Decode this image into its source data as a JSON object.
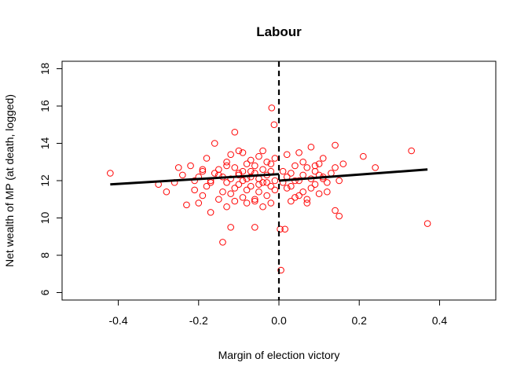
{
  "chart_data": {
    "type": "scatter",
    "title": "Labour",
    "xlabel": "Margin of election victory",
    "ylabel": "Net wealth of MP (at death, logged)",
    "xlim": [
      -0.54,
      0.54
    ],
    "ylim": [
      5.6,
      18.4
    ],
    "xticks": [
      -0.4,
      -0.2,
      0.0,
      0.2,
      0.4
    ],
    "xtick_labels": [
      "-0.4",
      "-0.2",
      "0.0",
      "0.2",
      "0.4"
    ],
    "yticks": [
      6,
      8,
      10,
      12,
      14,
      16,
      18
    ],
    "ytick_labels": [
      "6",
      "8",
      "10",
      "12",
      "14",
      "16",
      "18"
    ],
    "grid": false,
    "legend": "none",
    "point_color": "#ff0000",
    "line_color": "#000000",
    "cutoff_x": 0,
    "fit_left": {
      "x": [
        -0.42,
        0.0
      ],
      "y": [
        11.8,
        12.35
      ]
    },
    "fit_right": {
      "x": [
        0.0,
        0.37
      ],
      "y": [
        12.0,
        12.6
      ]
    },
    "points": [
      [
        -0.42,
        12.4
      ],
      [
        -0.3,
        11.8
      ],
      [
        -0.28,
        11.4
      ],
      [
        -0.26,
        11.9
      ],
      [
        -0.25,
        12.7
      ],
      [
        -0.24,
        12.3
      ],
      [
        -0.23,
        10.7
      ],
      [
        -0.22,
        12.8
      ],
      [
        -0.21,
        11.5
      ],
      [
        -0.2,
        12.2
      ],
      [
        -0.2,
        10.8
      ],
      [
        -0.19,
        11.2
      ],
      [
        -0.19,
        12.5
      ],
      [
        -0.18,
        13.2
      ],
      [
        -0.18,
        11.7
      ],
      [
        -0.17,
        12.0
      ],
      [
        -0.17,
        10.3
      ],
      [
        -0.16,
        12.4
      ],
      [
        -0.16,
        14.0
      ],
      [
        -0.15,
        11.0
      ],
      [
        -0.15,
        12.6
      ],
      [
        -0.14,
        11.4
      ],
      [
        -0.14,
        12.2
      ],
      [
        -0.13,
        13.0
      ],
      [
        -0.13,
        11.9
      ],
      [
        -0.13,
        10.6
      ],
      [
        -0.12,
        12.1
      ],
      [
        -0.12,
        13.4
      ],
      [
        -0.12,
        11.3
      ],
      [
        -0.11,
        12.7
      ],
      [
        -0.11,
        10.9
      ],
      [
        -0.11,
        14.6
      ],
      [
        -0.1,
        12.3
      ],
      [
        -0.1,
        11.8
      ],
      [
        -0.1,
        13.6
      ],
      [
        -0.09,
        12.0
      ],
      [
        -0.09,
        11.1
      ],
      [
        -0.09,
        12.5
      ],
      [
        -0.08,
        12.9
      ],
      [
        -0.08,
        11.5
      ],
      [
        -0.08,
        10.8
      ],
      [
        -0.07,
        12.2
      ],
      [
        -0.07,
        13.1
      ],
      [
        -0.07,
        11.7
      ],
      [
        -0.06,
        12.4
      ],
      [
        -0.06,
        11.0
      ],
      [
        -0.06,
        12.8
      ],
      [
        -0.05,
        12.1
      ],
      [
        -0.05,
        13.3
      ],
      [
        -0.05,
        11.4
      ],
      [
        -0.04,
        12.6
      ],
      [
        -0.04,
        11.9
      ],
      [
        -0.04,
        10.6
      ],
      [
        -0.03,
        12.3
      ],
      [
        -0.03,
        13.0
      ],
      [
        -0.03,
        11.2
      ],
      [
        -0.02,
        12.5
      ],
      [
        -0.02,
        11.7
      ],
      [
        -0.02,
        12.9
      ],
      [
        -0.01,
        12.0
      ],
      [
        -0.01,
        13.2
      ],
      [
        -0.01,
        11.5
      ],
      [
        -0.12,
        9.5
      ],
      [
        -0.14,
        8.7
      ],
      [
        -0.06,
        9.5
      ],
      [
        -0.1,
        12.4
      ],
      [
        -0.08,
        12.1
      ],
      [
        -0.05,
        11.8
      ],
      [
        -0.15,
        12.3
      ],
      [
        -0.17,
        11.9
      ],
      [
        -0.19,
        12.6
      ],
      [
        -0.21,
        12.0
      ],
      [
        -0.11,
        11.6
      ],
      [
        -0.07,
        12.5
      ],
      [
        -0.03,
        11.9
      ],
      [
        -0.13,
        12.8
      ],
      [
        -0.09,
        13.5
      ],
      [
        -0.04,
        13.6
      ],
      [
        -0.06,
        10.9
      ],
      [
        -0.02,
        10.8
      ],
      [
        -0.018,
        15.9
      ],
      [
        -0.012,
        15.0
      ],
      [
        0.005,
        7.2
      ],
      [
        0.003,
        9.4
      ],
      [
        0.015,
        9.4
      ],
      [
        0.01,
        12.5
      ],
      [
        0.01,
        11.9
      ],
      [
        0.02,
        12.2
      ],
      [
        0.02,
        13.4
      ],
      [
        0.03,
        11.7
      ],
      [
        0.03,
        12.4
      ],
      [
        0.04,
        11.1
      ],
      [
        0.04,
        12.8
      ],
      [
        0.05,
        12.0
      ],
      [
        0.05,
        13.5
      ],
      [
        0.06,
        11.4
      ],
      [
        0.06,
        12.3
      ],
      [
        0.07,
        12.7
      ],
      [
        0.07,
        11.0
      ],
      [
        0.08,
        12.1
      ],
      [
        0.08,
        13.8
      ],
      [
        0.09,
        11.8
      ],
      [
        0.09,
        12.5
      ],
      [
        0.1,
        12.9
      ],
      [
        0.1,
        11.3
      ],
      [
        0.11,
        12.2
      ],
      [
        0.11,
        13.2
      ],
      [
        0.12,
        11.9
      ],
      [
        0.13,
        12.4
      ],
      [
        0.14,
        12.7
      ],
      [
        0.14,
        13.9
      ],
      [
        0.15,
        12.0
      ],
      [
        0.15,
        10.1
      ],
      [
        0.14,
        10.4
      ],
      [
        0.16,
        12.9
      ],
      [
        0.21,
        13.3
      ],
      [
        0.24,
        12.7
      ],
      [
        0.33,
        13.6
      ],
      [
        0.37,
        9.7
      ],
      [
        0.02,
        11.6
      ],
      [
        0.04,
        12.0
      ],
      [
        0.06,
        13.0
      ],
      [
        0.08,
        11.6
      ],
      [
        0.1,
        12.3
      ],
      [
        0.12,
        11.4
      ],
      [
        0.03,
        10.9
      ],
      [
        0.05,
        11.2
      ],
      [
        0.07,
        10.8
      ],
      [
        0.09,
        12.8
      ],
      [
        0.11,
        12.1
      ]
    ]
  }
}
